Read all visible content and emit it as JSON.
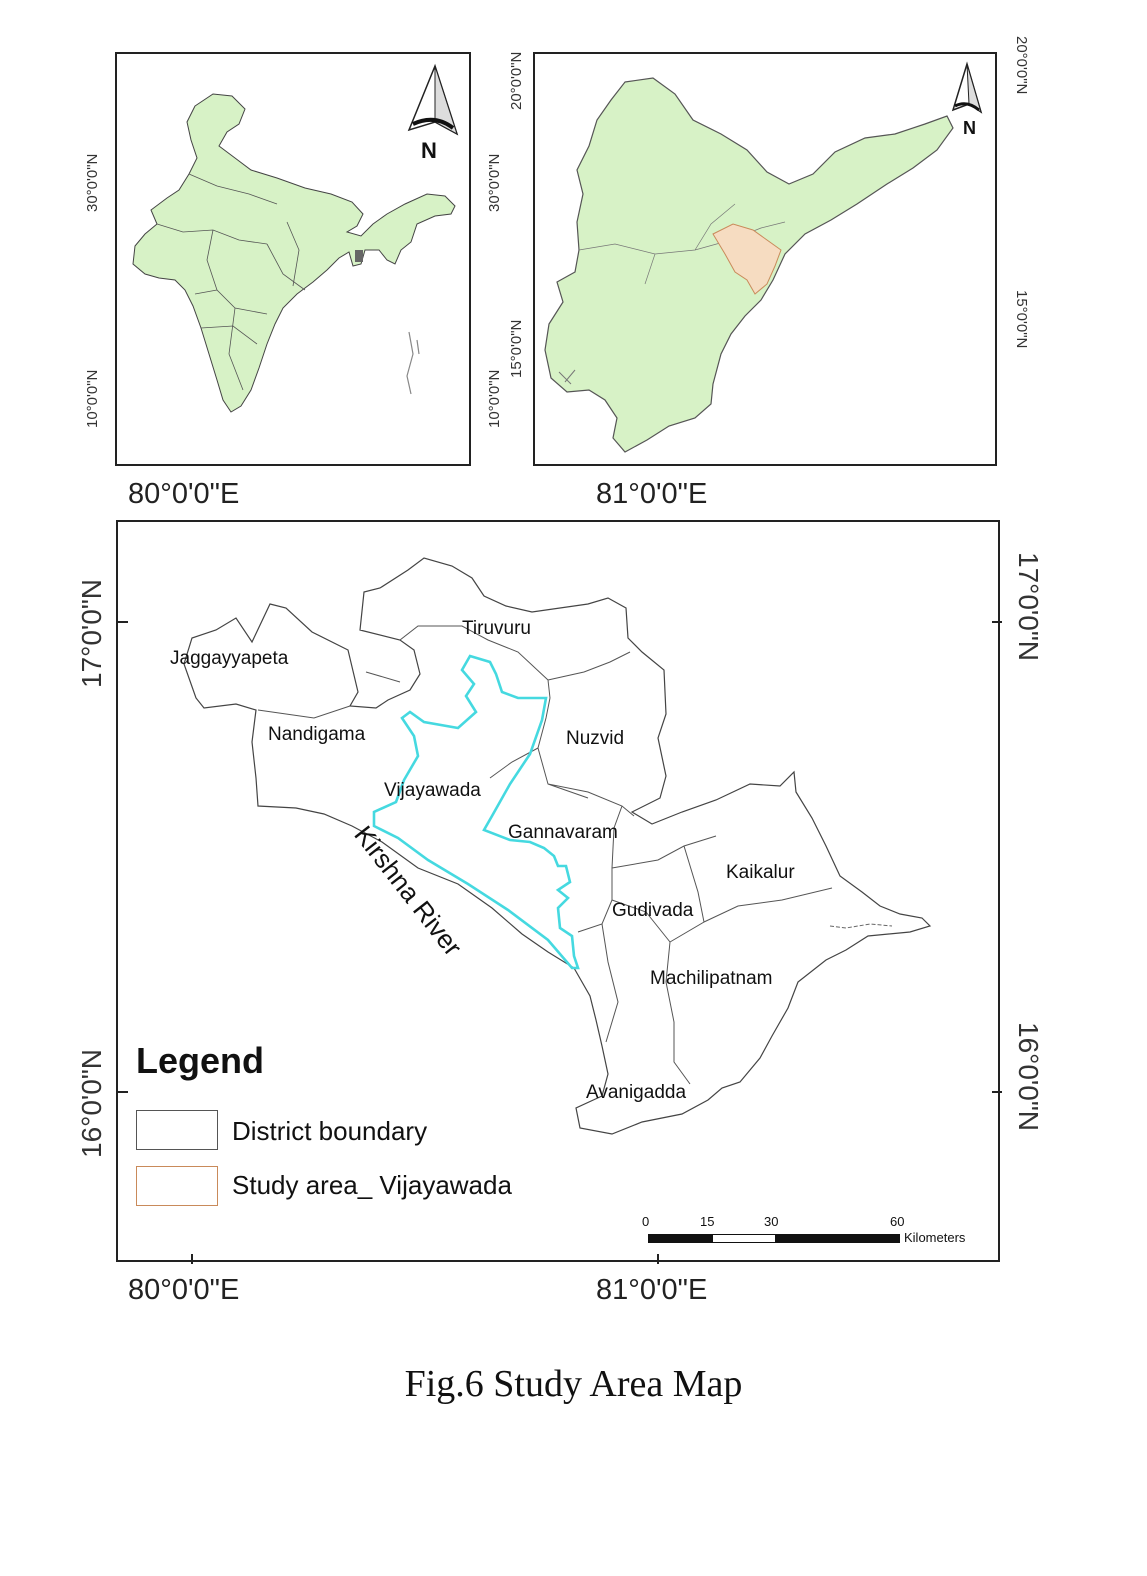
{
  "india_map": {
    "lat_labels": [
      "30°0'0\"N",
      "10°0'0\"N"
    ],
    "north_label": "N"
  },
  "ap_map": {
    "lat_labels_left": [
      "30°0'0\"N",
      "10°0'0\"N",
      "15°0'0\"N",
      "20°0'0\"N"
    ],
    "lat_labels_right": [
      "20°0'0\"N",
      "15°0'0\"N"
    ],
    "north_label": "N",
    "colors": {
      "state_fill": "#d7f2c6",
      "study_fill": "#f6dcc1"
    }
  },
  "top_lon_labels": [
    "80°0'0\"E",
    "81°0'0\"E"
  ],
  "krishna_map": {
    "lat_labels": [
      "17°0'0\"N",
      "16°0'0\"N"
    ],
    "lon_labels": [
      "80°0'0\"E",
      "81°0'0\"E"
    ],
    "districts": [
      "Tiruvuru",
      "Jaggayyapeta",
      "Nandigama",
      "Nuzvid",
      "Vijayawada",
      "Gannavaram",
      "Kaikalur",
      "Gudivada",
      "Machilipatnam",
      "Avanigadda"
    ],
    "river_label": "Kirshna River",
    "study_outline_color": "#45d9e0",
    "legend": {
      "title": "Legend",
      "items": [
        {
          "label": "District boundary",
          "color": "#555555"
        },
        {
          "label": "Study area_ Vijayawada",
          "color": "#c98a5a"
        }
      ]
    },
    "scale_bar": {
      "ticks": [
        "0",
        "15",
        "30",
        "60"
      ],
      "unit": "Kilometers"
    }
  },
  "caption": "Fig.6 Study Area Map"
}
